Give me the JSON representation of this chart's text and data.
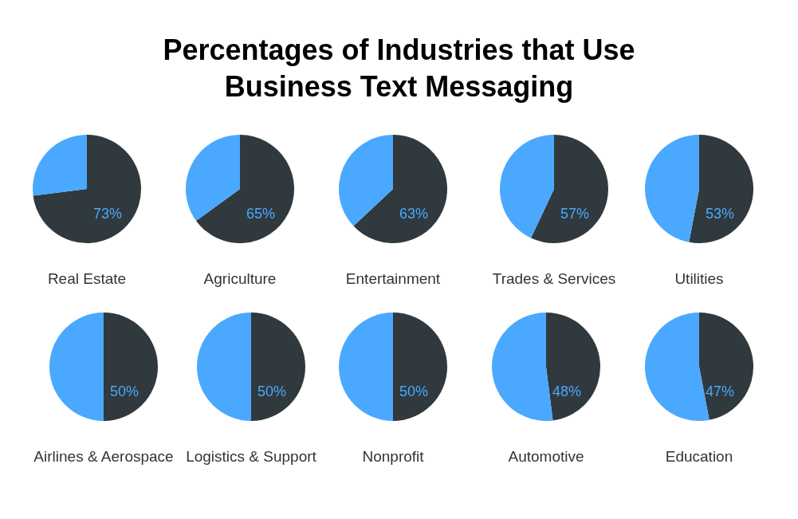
{
  "chart_data": [
    {
      "type": "other",
      "title": "Percentages of Industries that Use Business Text Messaging"
    },
    {
      "type": "pie",
      "title": "Real Estate",
      "categories": [
        null,
        null
      ],
      "values": [
        73,
        27
      ],
      "colors": [
        "#30393d",
        "#4aa8ff"
      ],
      "value_labels": [
        "73%",
        null
      ]
    },
    {
      "type": "pie",
      "title": "Agriculture",
      "categories": [
        null,
        null
      ],
      "values": [
        65,
        35
      ],
      "colors": [
        "#30393d",
        "#4aa8ff"
      ],
      "value_labels": [
        "65%",
        null
      ]
    },
    {
      "type": "pie",
      "title": "Entertainment",
      "categories": [
        null,
        null
      ],
      "values": [
        63,
        37
      ],
      "colors": [
        "#30393d",
        "#4aa8ff"
      ],
      "value_labels": [
        "63%",
        null
      ]
    },
    {
      "type": "pie",
      "title": "Trades & Services",
      "categories": [
        null,
        null
      ],
      "values": [
        57,
        43
      ],
      "colors": [
        "#30393d",
        "#4aa8ff"
      ],
      "value_labels": [
        "57%",
        null
      ]
    },
    {
      "type": "pie",
      "title": "Utilities",
      "categories": [
        null,
        null
      ],
      "values": [
        53,
        47
      ],
      "colors": [
        "#30393d",
        "#4aa8ff"
      ],
      "value_labels": [
        "53%",
        null
      ]
    },
    {
      "type": "pie",
      "title": "Airlines & Aerospace",
      "categories": [
        null,
        null
      ],
      "values": [
        50,
        50
      ],
      "colors": [
        "#30393d",
        "#4aa8ff"
      ],
      "value_labels": [
        "50%",
        null
      ]
    },
    {
      "type": "pie",
      "title": "Logistics & Support",
      "categories": [
        null,
        null
      ],
      "values": [
        50,
        50
      ],
      "colors": [
        "#30393d",
        "#4aa8ff"
      ],
      "value_labels": [
        "50%",
        null
      ]
    },
    {
      "type": "pie",
      "title": "Nonprofit",
      "categories": [
        null,
        null
      ],
      "values": [
        50,
        50
      ],
      "colors": [
        "#30393d",
        "#4aa8ff"
      ],
      "value_labels": [
        "50%",
        null
      ]
    },
    {
      "type": "pie",
      "title": "Automotive",
      "categories": [
        null,
        null
      ],
      "values": [
        48,
        52
      ],
      "colors": [
        "#30393d",
        "#4aa8ff"
      ],
      "value_labels": [
        "48%",
        null
      ]
    },
    {
      "type": "pie",
      "title": "Education",
      "categories": [
        null,
        null
      ],
      "values": [
        47,
        53
      ],
      "colors": [
        "#30393d",
        "#4aa8ff"
      ],
      "value_labels": [
        "47%",
        null
      ]
    }
  ]
}
